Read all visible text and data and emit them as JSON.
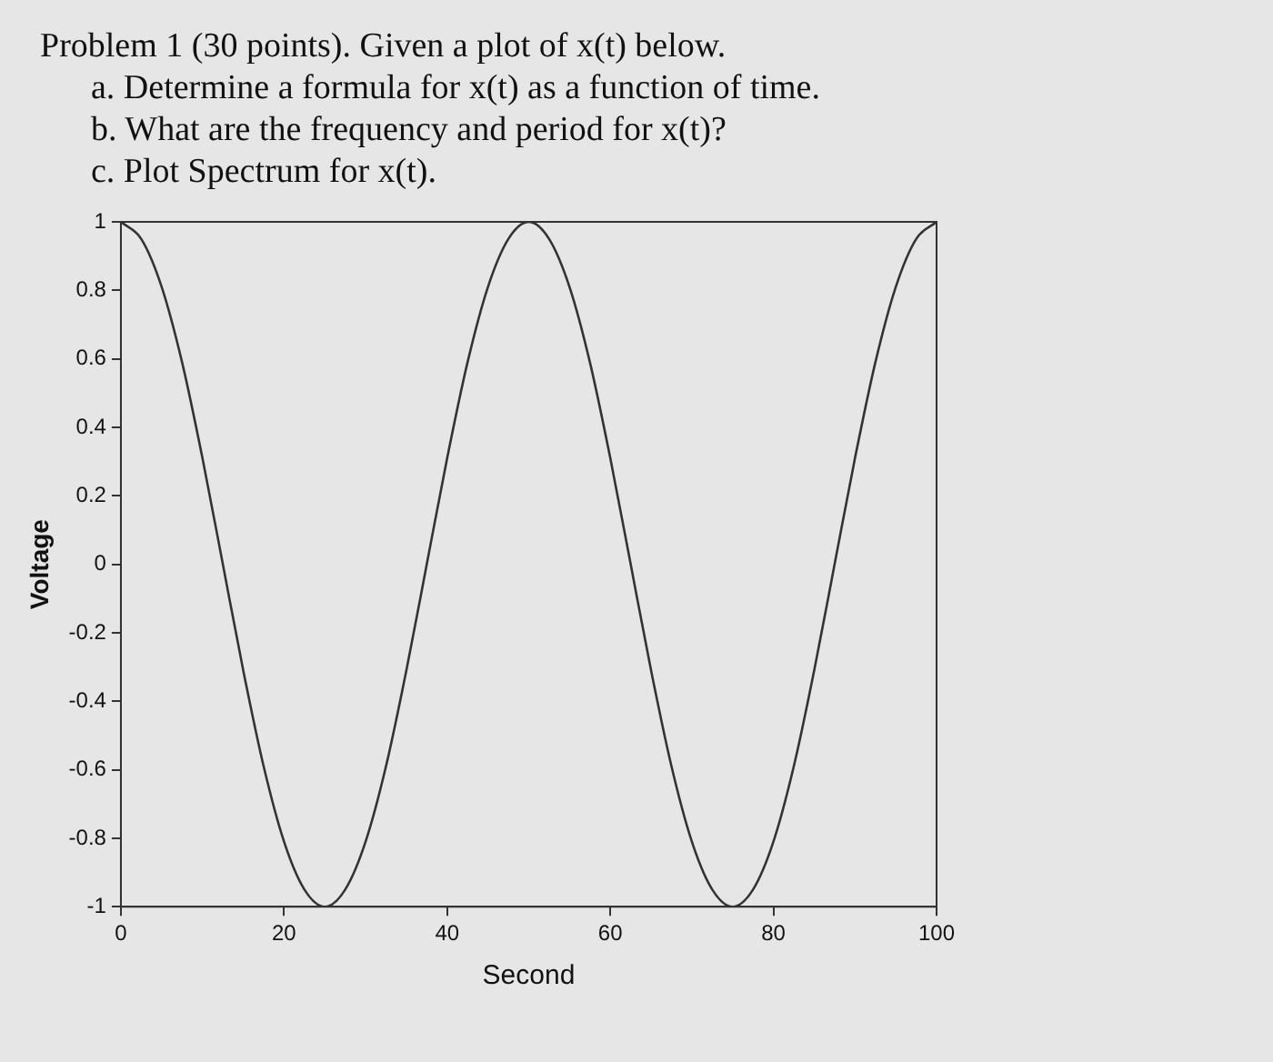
{
  "chart_data": {
    "type": "line",
    "title": "Problem 1 (30 points). Given a plot of x(t) below.",
    "annotations": [
      "a. Determine a formula for x(t) as a function of time.",
      "b. What are the frequency and period for x(t)?",
      "c. Plot Spectrum for x(t)."
    ],
    "xlabel": "Second",
    "ylabel": "Voltage",
    "x": [
      0,
      2.5,
      5,
      7.5,
      10,
      12.5,
      15,
      17.5,
      20,
      22.5,
      25,
      27.5,
      30,
      32.5,
      35,
      37.5,
      40,
      42.5,
      45,
      47.5,
      50,
      52.5,
      55,
      57.5,
      60,
      62.5,
      65,
      67.5,
      70,
      72.5,
      75,
      77.5,
      80,
      82.5,
      85,
      87.5,
      90,
      92.5,
      95,
      97.5,
      100
    ],
    "series": [
      {
        "color": "#333333",
        "values": [
          1,
          0.95,
          0.81,
          0.59,
          0.31,
          0,
          -0.31,
          -0.59,
          -0.81,
          -0.95,
          -1,
          -0.95,
          -0.81,
          -0.59,
          -0.31,
          0,
          0.31,
          0.59,
          0.81,
          0.95,
          1,
          0.95,
          0.81,
          0.59,
          0.31,
          0,
          -0.31,
          -0.59,
          -0.81,
          -0.95,
          -1,
          -0.95,
          -0.81,
          -0.59,
          -0.31,
          0,
          0.31,
          0.59,
          0.81,
          0.95,
          1
        ]
      }
    ],
    "xlim": [
      0,
      100
    ],
    "xticks": [
      0,
      20,
      40,
      60,
      80,
      100
    ],
    "ylim": [
      -1,
      1
    ],
    "yticks": [
      -1,
      -0.8,
      -0.6,
      -0.4,
      -0.2,
      0,
      0.2,
      0.4,
      0.6,
      0.8,
      1
    ],
    "grid": false,
    "legend": false,
    "marker": "none",
    "line_style": "solid"
  }
}
